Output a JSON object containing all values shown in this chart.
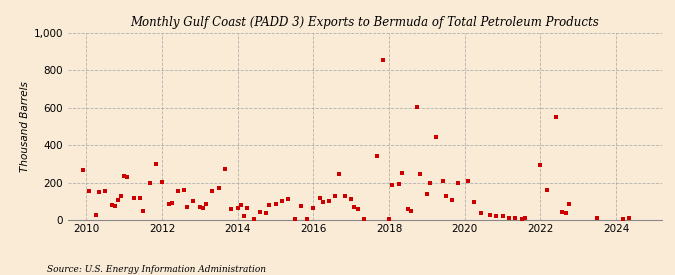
{
  "title": "Monthly Gulf Coast (PADD 3) Exports to Bermuda of Total Petroleum Products",
  "ylabel": "Thousand Barrels",
  "source": "Source: U.S. Energy Information Administration",
  "background_color": "#faebd7",
  "plot_bg_color": "#faebd7",
  "marker_color": "#cc0000",
  "xlim": [
    2009.5,
    2025.2
  ],
  "ylim": [
    0,
    1000
  ],
  "yticks": [
    0,
    200,
    400,
    600,
    800,
    1000
  ],
  "xticks": [
    2010,
    2012,
    2014,
    2016,
    2018,
    2020,
    2022,
    2024
  ],
  "data": [
    [
      2009.92,
      270
    ],
    [
      2010.08,
      155
    ],
    [
      2010.25,
      25
    ],
    [
      2010.33,
      150
    ],
    [
      2010.5,
      155
    ],
    [
      2010.67,
      80
    ],
    [
      2010.75,
      75
    ],
    [
      2010.83,
      105
    ],
    [
      2010.92,
      130
    ],
    [
      2011.0,
      235
    ],
    [
      2011.08,
      230
    ],
    [
      2011.25,
      120
    ],
    [
      2011.42,
      115
    ],
    [
      2011.5,
      50
    ],
    [
      2011.67,
      200
    ],
    [
      2011.83,
      300
    ],
    [
      2012.0,
      205
    ],
    [
      2012.17,
      85
    ],
    [
      2012.25,
      90
    ],
    [
      2012.42,
      155
    ],
    [
      2012.58,
      160
    ],
    [
      2012.67,
      70
    ],
    [
      2012.83,
      100
    ],
    [
      2013.0,
      70
    ],
    [
      2013.08,
      65
    ],
    [
      2013.17,
      85
    ],
    [
      2013.33,
      155
    ],
    [
      2013.5,
      170
    ],
    [
      2013.67,
      275
    ],
    [
      2013.83,
      60
    ],
    [
      2014.0,
      65
    ],
    [
      2014.08,
      80
    ],
    [
      2014.17,
      20
    ],
    [
      2014.25,
      65
    ],
    [
      2014.42,
      5
    ],
    [
      2014.58,
      45
    ],
    [
      2014.75,
      40
    ],
    [
      2014.83,
      80
    ],
    [
      2015.0,
      85
    ],
    [
      2015.17,
      100
    ],
    [
      2015.33,
      110
    ],
    [
      2015.5,
      5
    ],
    [
      2015.67,
      75
    ],
    [
      2015.83,
      5
    ],
    [
      2016.0,
      65
    ],
    [
      2016.17,
      115
    ],
    [
      2016.25,
      95
    ],
    [
      2016.42,
      100
    ],
    [
      2016.58,
      130
    ],
    [
      2016.67,
      245
    ],
    [
      2016.83,
      130
    ],
    [
      2017.0,
      110
    ],
    [
      2017.08,
      70
    ],
    [
      2017.17,
      60
    ],
    [
      2017.33,
      5
    ],
    [
      2017.67,
      340
    ],
    [
      2017.83,
      855
    ],
    [
      2018.0,
      5
    ],
    [
      2018.08,
      185
    ],
    [
      2018.25,
      195
    ],
    [
      2018.33,
      250
    ],
    [
      2018.5,
      60
    ],
    [
      2018.58,
      50
    ],
    [
      2018.75,
      605
    ],
    [
      2018.83,
      245
    ],
    [
      2019.0,
      140
    ],
    [
      2019.08,
      200
    ],
    [
      2019.25,
      445
    ],
    [
      2019.42,
      210
    ],
    [
      2019.5,
      130
    ],
    [
      2019.67,
      105
    ],
    [
      2019.83,
      200
    ],
    [
      2020.08,
      210
    ],
    [
      2020.25,
      95
    ],
    [
      2020.42,
      35
    ],
    [
      2020.67,
      25
    ],
    [
      2020.83,
      20
    ],
    [
      2021.0,
      20
    ],
    [
      2021.17,
      10
    ],
    [
      2021.33,
      10
    ],
    [
      2021.5,
      5
    ],
    [
      2021.58,
      10
    ],
    [
      2022.0,
      295
    ],
    [
      2022.17,
      160
    ],
    [
      2022.42,
      550
    ],
    [
      2022.58,
      45
    ],
    [
      2022.67,
      40
    ],
    [
      2022.75,
      85
    ],
    [
      2023.5,
      10
    ],
    [
      2024.17,
      5
    ],
    [
      2024.33,
      10
    ]
  ]
}
